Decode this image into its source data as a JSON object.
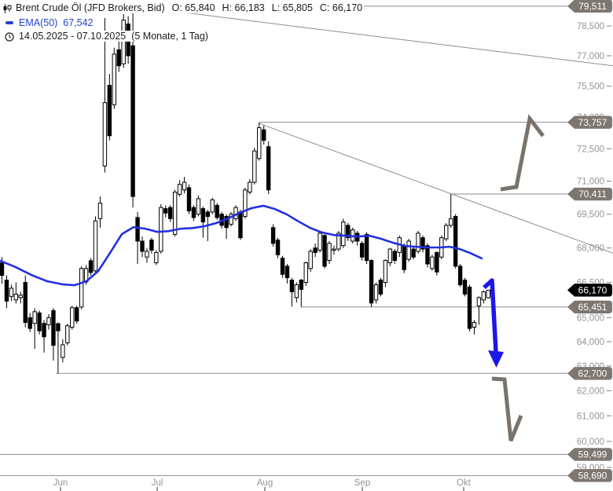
{
  "header": {
    "instrument": "Brent Crude Öl (JFD Brokers, Bid)",
    "ohlc": [
      {
        "k": "O:",
        "v": "65,840"
      },
      {
        "k": "H:",
        "v": "66,183"
      },
      {
        "k": "L:",
        "v": "65,805"
      },
      {
        "k": "C:",
        "v": "66,170"
      }
    ],
    "indicator": {
      "label": "EMA(50)",
      "value": "67,542"
    },
    "range": {
      "text": "14.05.2025 - 07.10.2025",
      "suffix": "(5 Monate, 1 Tag)"
    }
  },
  "colors": {
    "ema_line": "#2130df",
    "blue_arrow": "#1c18e8",
    "gray_arrow": "#7a736d",
    "level_line": "#8f8d8b",
    "badge_gray": "#7d7771",
    "badge_black": "#000000",
    "axis_text": "#949494",
    "candle": "#000000"
  },
  "chart_data": {
    "type": "candlestick",
    "title": "Brent Crude Öl (JFD Brokers, Bid)",
    "interval": "1 Tag",
    "period": "14.05.2025 - 07.10.2025",
    "y_scale": "log",
    "ylim": [
      58500,
      79700
    ],
    "y_ticks": [
      {
        "label": "78,500",
        "value": 78500
      },
      {
        "label": "77,000",
        "value": 77000
      },
      {
        "label": "75,500",
        "value": 75500
      },
      {
        "label": "74,000",
        "value": 74000
      },
      {
        "label": "72,500",
        "value": 72500
      },
      {
        "label": "71,000",
        "value": 71000
      },
      {
        "label": "69,500",
        "value": 69500
      },
      {
        "label": "68,000",
        "value": 68000
      },
      {
        "label": "66,500",
        "value": 66500
      },
      {
        "label": "65,000",
        "value": 65000
      },
      {
        "label": "64,000",
        "value": 64000
      },
      {
        "label": "63,000",
        "value": 63000
      },
      {
        "label": "62,000",
        "value": 62000
      },
      {
        "label": "61,000",
        "value": 61000
      },
      {
        "label": "60,000",
        "value": 60000
      },
      {
        "label": "59,000",
        "value": 59000
      }
    ],
    "x_ticks": [
      {
        "label": "Jun",
        "x": 77
      },
      {
        "label": "Jul",
        "x": 200
      },
      {
        "label": "Aug",
        "x": 337
      },
      {
        "label": "Sep",
        "x": 461
      },
      {
        "label": "Okt",
        "x": 590
      }
    ],
    "candles": [
      [
        67350,
        67600,
        66450,
        66800
      ],
      [
        66600,
        66800,
        65400,
        65700
      ],
      [
        65900,
        66400,
        65700,
        66250
      ],
      [
        65750,
        66500,
        65600,
        66000
      ],
      [
        65850,
        66100,
        65600,
        65950
      ],
      [
        66500,
        66800,
        64600,
        64800
      ],
      [
        65000,
        65200,
        64400,
        64550
      ],
      [
        64760,
        65400,
        63700,
        65250
      ],
      [
        65200,
        65300,
        64300,
        64450
      ],
      [
        64760,
        64900,
        63550,
        64200
      ],
      [
        64700,
        65150,
        64500,
        65000
      ],
      [
        65300,
        65400,
        63220,
        63850
      ],
      [
        64750,
        64800,
        62700,
        64450
      ],
      [
        63350,
        64100,
        63150,
        63870
      ],
      [
        63950,
        64750,
        63850,
        64660
      ],
      [
        64600,
        65500,
        64500,
        65420
      ],
      [
        65420,
        65500,
        64750,
        64860
      ],
      [
        65450,
        67200,
        65350,
        67100
      ],
      [
        66520,
        67250,
        66400,
        67100
      ],
      [
        67440,
        67550,
        66800,
        66930
      ],
      [
        67000,
        69400,
        66900,
        69200
      ],
      [
        69300,
        70300,
        68900,
        70000
      ],
      [
        71700,
        78900,
        71400,
        74700
      ],
      [
        75540,
        76100,
        72900,
        73120
      ],
      [
        74600,
        77400,
        74400,
        77080
      ],
      [
        77300,
        78200,
        76200,
        76500
      ],
      [
        76600,
        79100,
        76400,
        78800
      ],
      [
        78600,
        79000,
        76600,
        77000
      ],
      [
        77500,
        79511,
        69800,
        70300
      ],
      [
        69350,
        69600,
        67300,
        68300
      ],
      [
        68300,
        68500,
        67600,
        67850
      ],
      [
        67600,
        68000,
        67350,
        67850
      ],
      [
        68350,
        68450,
        67750,
        67900
      ],
      [
        67350,
        67900,
        67250,
        67800
      ],
      [
        67850,
        69950,
        67750,
        69800
      ],
      [
        69750,
        69900,
        69350,
        69550
      ],
      [
        69800,
        69900,
        69150,
        69300
      ],
      [
        68600,
        70600,
        68500,
        70500
      ],
      [
        70400,
        71050,
        70300,
        70850
      ],
      [
        70600,
        71200,
        70450,
        70950
      ],
      [
        70700,
        70850,
        69500,
        69650
      ],
      [
        69800,
        69900,
        69200,
        69350
      ],
      [
        69500,
        70350,
        69400,
        70200
      ],
      [
        69750,
        69850,
        68450,
        69150
      ],
      [
        69600,
        69700,
        68300,
        69400
      ],
      [
        69600,
        70250,
        69500,
        70150
      ],
      [
        69900,
        70000,
        69250,
        69350
      ],
      [
        69500,
        69600,
        68850,
        69000
      ],
      [
        69400,
        69500,
        68400,
        68900
      ],
      [
        69050,
        69600,
        68950,
        69500
      ],
      [
        69300,
        69900,
        69200,
        69800
      ],
      [
        69600,
        69700,
        68350,
        68450
      ],
      [
        69400,
        70700,
        69300,
        70600
      ],
      [
        70500,
        71100,
        70400,
        70950
      ],
      [
        70950,
        72550,
        70850,
        72400
      ],
      [
        72050,
        73757,
        71950,
        73500
      ],
      [
        73400,
        73600,
        72700,
        72900
      ],
      [
        72600,
        72850,
        70410,
        70600
      ],
      [
        68900,
        69050,
        68050,
        68200
      ],
      [
        68350,
        68450,
        67550,
        67700
      ],
      [
        67550,
        67650,
        66700,
        66850
      ],
      [
        67200,
        67300,
        66450,
        66700
      ],
      [
        66600,
        66700,
        65470,
        66100
      ],
      [
        65850,
        66500,
        65650,
        66400
      ],
      [
        66600,
        66650,
        65451,
        66200
      ],
      [
        66500,
        67400,
        66350,
        67350
      ],
      [
        67100,
        67950,
        66950,
        67850
      ],
      [
        68000,
        68200,
        67600,
        67800
      ],
      [
        67900,
        68700,
        67800,
        68650
      ],
      [
        68550,
        68600,
        67100,
        67200
      ],
      [
        67450,
        68300,
        67300,
        68200
      ],
      [
        67900,
        68100,
        67700,
        67950
      ],
      [
        67950,
        68750,
        67850,
        68650
      ],
      [
        68100,
        69300,
        68000,
        69150
      ],
      [
        69000,
        69100,
        68300,
        68450
      ],
      [
        68300,
        68900,
        68200,
        68800
      ],
      [
        68650,
        68750,
        68100,
        68300
      ],
      [
        68200,
        68300,
        67450,
        67600
      ],
      [
        68600,
        68700,
        67300,
        67450
      ],
      [
        67450,
        67500,
        65451,
        65620
      ],
      [
        65750,
        66500,
        65600,
        66400
      ],
      [
        66600,
        66700,
        65900,
        66000
      ],
      [
        66500,
        67500,
        66300,
        67450
      ],
      [
        67350,
        68000,
        67200,
        67950
      ],
      [
        67850,
        67950,
        67300,
        67450
      ],
      [
        67800,
        68550,
        67600,
        68450
      ],
      [
        68100,
        68200,
        66900,
        67050
      ],
      [
        67500,
        68400,
        67400,
        68300
      ],
      [
        67950,
        68050,
        67500,
        67600
      ],
      [
        67850,
        68750,
        67750,
        68650
      ],
      [
        68450,
        68550,
        67800,
        67950
      ],
      [
        68100,
        68200,
        67150,
        67300
      ],
      [
        67100,
        67700,
        67000,
        67600
      ],
      [
        67800,
        67850,
        66800,
        66950
      ],
      [
        67600,
        68550,
        67500,
        68450
      ],
      [
        68400,
        69100,
        68300,
        69000
      ],
      [
        69000,
        70411,
        68900,
        69300
      ],
      [
        69400,
        69500,
        67100,
        67200
      ],
      [
        67200,
        67300,
        66300,
        66400
      ],
      [
        66600,
        66700,
        65900,
        66000
      ],
      [
        66300,
        66400,
        64430,
        64550
      ],
      [
        64600,
        64900,
        64300,
        64800
      ],
      [
        65500,
        65900,
        64700,
        65850
      ],
      [
        65750,
        66150,
        65600,
        66100
      ],
      [
        65840,
        66183,
        65805,
        66170
      ]
    ],
    "ema50": {
      "x": [
        0,
        20,
        40,
        60,
        80,
        95,
        110,
        125,
        140,
        155,
        170,
        185,
        200,
        215,
        230,
        245,
        260,
        275,
        290,
        305,
        320,
        335,
        350,
        365,
        380,
        395,
        410,
        425,
        440,
        455,
        470,
        485,
        500,
        515,
        530,
        545,
        560,
        572,
        585,
        598,
        613
      ],
      "values": [
        67440,
        67160,
        66820,
        66550,
        66415,
        66380,
        66550,
        66990,
        67780,
        68610,
        68920,
        68850,
        68710,
        68745,
        68850,
        68880,
        68960,
        69100,
        69310,
        69560,
        69770,
        69880,
        69730,
        69490,
        69170,
        68880,
        68680,
        68570,
        68540,
        68500,
        68540,
        68400,
        68230,
        68090,
        68050,
        68020,
        68020,
        68050,
        67950,
        67780,
        67542
      ]
    },
    "levels": [
      {
        "label": "79,511",
        "value": 79511,
        "line": true,
        "x1": 167,
        "style": "gray"
      },
      {
        "label": "73,757",
        "value": 73757,
        "line": true,
        "x1": 330,
        "style": "gray"
      },
      {
        "label": "70,411",
        "value": 70411,
        "line": true,
        "x1": 573,
        "style": "gray"
      },
      {
        "label": "66,170",
        "value": 66170,
        "line": false,
        "x1": 0,
        "style": "black"
      },
      {
        "label": "65,451",
        "value": 65451,
        "line": true,
        "x1": 383,
        "style": "gray"
      },
      {
        "label": "62,700",
        "value": 62700,
        "line": true,
        "x1": 71,
        "style": "gray"
      },
      {
        "label": "59,499",
        "value": 59499,
        "line": true,
        "x1": 0,
        "style": "gray"
      },
      {
        "label": "58,690",
        "value": 58690,
        "line": true,
        "x1": 0,
        "style": "gray"
      }
    ],
    "trendlines": [
      {
        "x1": 167,
        "p1": 79520,
        "x2": 780,
        "p2": 76500
      },
      {
        "x1": 330,
        "p1": 73700,
        "x2": 780,
        "p2": 67770
      }
    ],
    "annotations": {
      "blue_arrow": [
        [
          616,
          366
        ],
        [
          626,
          357
        ],
        [
          631,
          448
        ]
      ],
      "blue_arrow_head": [
        [
          631.5,
          468
        ],
        [
          621,
          446
        ],
        [
          641,
          448
        ]
      ],
      "gray_arrow_upper": [
        [
          637,
          241
        ],
        [
          657,
          238
        ],
        [
          674,
          151
        ],
        [
          691,
          173
        ]
      ],
      "gray_arrow_lower": [
        [
          626,
          482
        ],
        [
          642,
          483
        ],
        [
          650,
          561
        ],
        [
          663,
          529
        ]
      ]
    }
  }
}
